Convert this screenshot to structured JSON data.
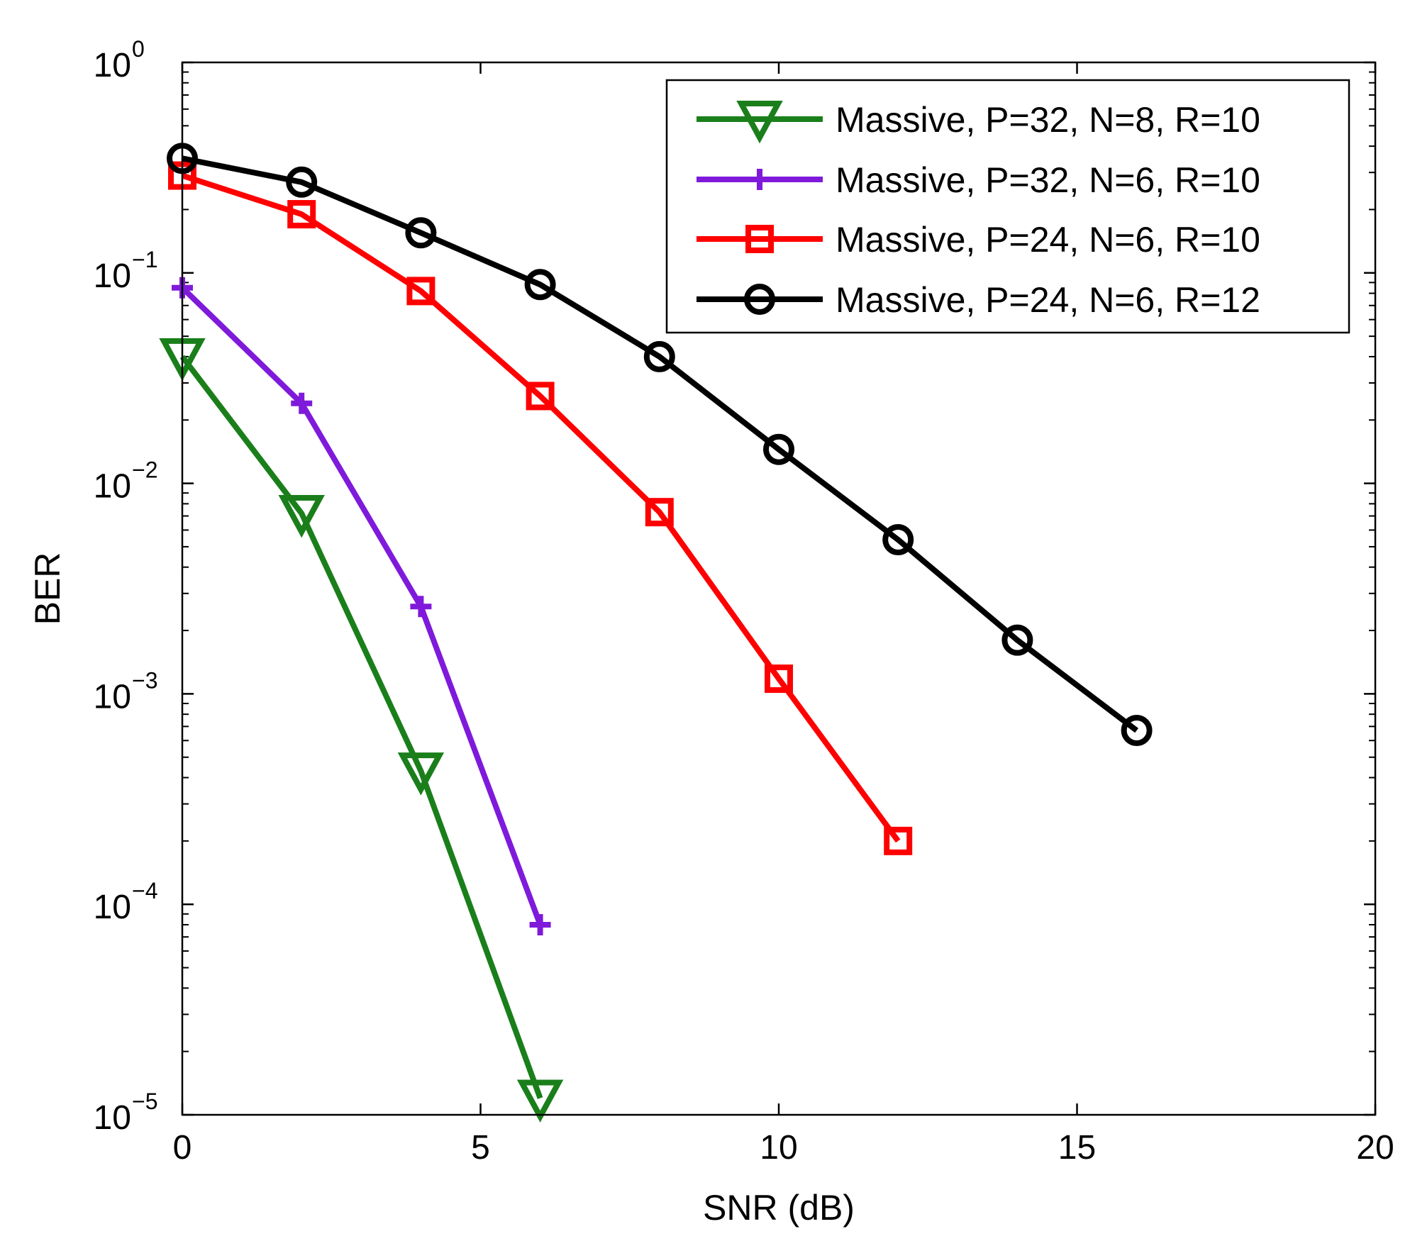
{
  "chart_data": {
    "type": "line",
    "title": "",
    "xlabel": "SNR (dB)",
    "ylabel": "BER",
    "xlim": [
      0,
      20
    ],
    "ylim": [
      1e-05,
      1
    ],
    "yscale": "log",
    "grid": false,
    "legend_position": "top-right",
    "x_ticks": [
      {
        "value": 0,
        "label": "0"
      },
      {
        "value": 5,
        "label": "5"
      },
      {
        "value": 10,
        "label": "10"
      },
      {
        "value": 15,
        "label": "15"
      },
      {
        "value": 20,
        "label": "20"
      }
    ],
    "y_ticks": [
      {
        "value": 1,
        "base": "10",
        "exp": "0"
      },
      {
        "value": 0.1,
        "base": "10",
        "exp": "−1"
      },
      {
        "value": 0.01,
        "base": "10",
        "exp": "−2"
      },
      {
        "value": 0.001,
        "base": "10",
        "exp": "−3"
      },
      {
        "value": 0.0001,
        "base": "10",
        "exp": "−4"
      },
      {
        "value": 1e-05,
        "base": "10",
        "exp": "−5"
      }
    ],
    "series": [
      {
        "name": "Massive, P=32, N=8, R=10",
        "color": "#1a7f1a",
        "marker": "triangle-down",
        "x": [
          0,
          2,
          4,
          6
        ],
        "y": [
          0.04,
          0.0072,
          0.00043,
          1.2e-05
        ]
      },
      {
        "name": "Massive, P=32, N=6, R=10",
        "color": "#7f1adb",
        "marker": "plus",
        "x": [
          0,
          2,
          4,
          6
        ],
        "y": [
          0.085,
          0.024,
          0.0026,
          8e-05
        ]
      },
      {
        "name": "Massive, P=24, N=6, R=10",
        "color": "#ff0000",
        "marker": "square",
        "x": [
          0,
          2,
          4,
          6,
          8,
          10,
          12
        ],
        "y": [
          0.29,
          0.19,
          0.082,
          0.026,
          0.0073,
          0.00118,
          0.0002
        ]
      },
      {
        "name": "Massive, P=24, N=6, R=12",
        "color": "#000000",
        "marker": "circle",
        "x": [
          0,
          2,
          4,
          6,
          8,
          10,
          12,
          14,
          16
        ],
        "y": [
          0.35,
          0.27,
          0.155,
          0.088,
          0.04,
          0.0145,
          0.0054,
          0.0018,
          0.00067
        ]
      }
    ]
  }
}
